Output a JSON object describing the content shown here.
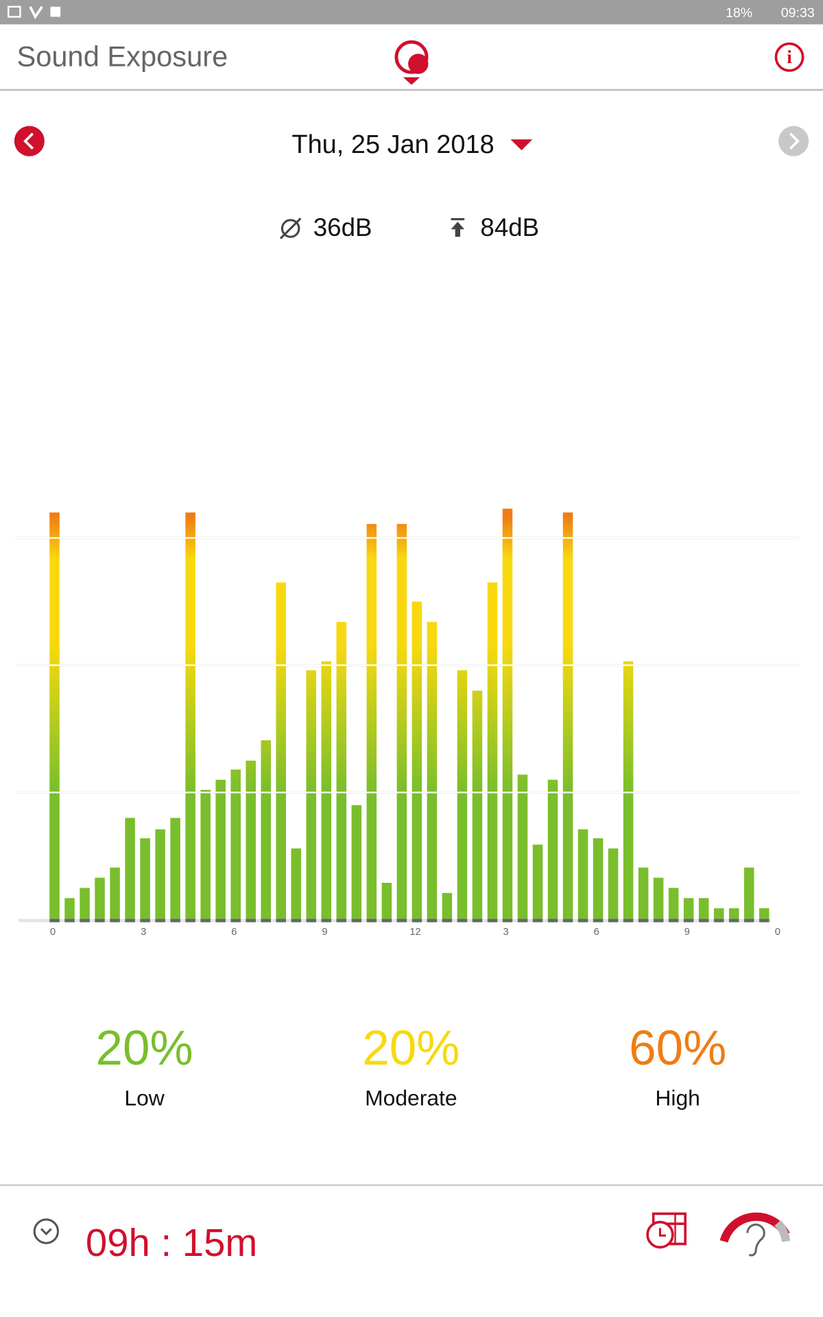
{
  "status_bar": {
    "battery": "18%",
    "time": "09:33"
  },
  "header": {
    "title": "Sound Exposure"
  },
  "date": "Thu, 25 Jan 2018",
  "stats": {
    "average": "36dB",
    "max": "84dB"
  },
  "chart_data": {
    "type": "bar",
    "x": [
      0,
      0.5,
      1,
      1.5,
      2,
      2.5,
      3,
      3.5,
      4,
      4.5,
      5,
      5.5,
      6,
      6.5,
      7,
      7.5,
      8,
      8.5,
      9,
      9.5,
      10,
      10.5,
      11,
      11.5,
      12,
      12.5,
      13,
      13.5,
      14,
      14.5,
      15,
      15.5,
      16,
      16.5,
      17,
      17.5,
      18,
      18.5,
      19,
      19.5,
      20,
      20.5,
      21,
      21.5,
      22,
      22.5,
      23,
      23.5
    ],
    "values": [
      3.2,
      0.17,
      0.25,
      0.33,
      0.41,
      0.8,
      0.64,
      0.71,
      0.8,
      3.2,
      1.02,
      1.1,
      1.18,
      1.25,
      1.41,
      2.65,
      0.56,
      1.96,
      2.03,
      2.34,
      0.9,
      3.11,
      0.29,
      3.11,
      2.5,
      2.34,
      0.21,
      1.96,
      1.8,
      2.65,
      3.23,
      1.14,
      0.59,
      1.1,
      3.2,
      0.71,
      0.64,
      0.56,
      2.03,
      0.41,
      0.33,
      0.25,
      0.17,
      0.17,
      0.09,
      0.09,
      0.41,
      0.09
    ],
    "xlim": [
      0,
      24
    ],
    "xticks": [
      0,
      3,
      6,
      9,
      12,
      {
        "value": 15,
        "label": "3"
      },
      {
        "value": 18,
        "label": "6"
      },
      {
        "value": 21,
        "label": "9"
      },
      {
        "value": 24,
        "label": "0"
      }
    ],
    "ylim": [
      0,
      3.3
    ],
    "yticks": [
      1,
      2,
      3
    ],
    "grid": true,
    "colors": {
      "low": "#79be2c",
      "moderate": "#f8d90f",
      "high": "#ef7d14"
    }
  },
  "summary": [
    {
      "percent": "20%",
      "label": "Low"
    },
    {
      "percent": "20%",
      "label": "Moderate"
    },
    {
      "percent": "60%",
      "label": "High"
    }
  ],
  "duration": "09h : 15m"
}
